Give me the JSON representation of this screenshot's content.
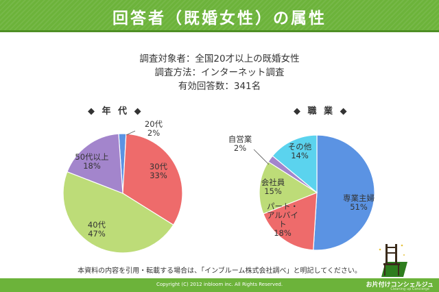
{
  "header": {
    "title": "回答者（既婚女性）の属性"
  },
  "survey": {
    "line1": "調査対象者：全国20才以上の既婚女性",
    "line2": "調査方法：インターネット調査",
    "line3": "有効回答数：341名"
  },
  "colors": {
    "brand_green": "#6cb33a",
    "blue": "#5b93e3",
    "red": "#ee6b6b",
    "green": "#bddc78",
    "purple": "#a385cc",
    "cyan": "#5bd3ee"
  },
  "chart_data": [
    {
      "type": "pie",
      "title": "◆ 年 代 ◆",
      "slices": [
        {
          "label": "20代",
          "value": 2,
          "value_label": "2%",
          "color": "#5b93e3"
        },
        {
          "label": "30代",
          "value": 33,
          "value_label": "33%",
          "color": "#ee6b6b"
        },
        {
          "label": "40代",
          "value": 47,
          "value_label": "47%",
          "color": "#bddc78"
        },
        {
          "label": "50代以上",
          "value": 18,
          "value_label": "18%",
          "color": "#a385cc"
        }
      ]
    },
    {
      "type": "pie",
      "title": "◆ 職 業 ◆",
      "slices": [
        {
          "label": "専業主婦",
          "value": 51,
          "value_label": "51%",
          "color": "#5b93e3"
        },
        {
          "label": "パート・アルバイト",
          "value": 18,
          "value_label": "18%",
          "color": "#ee6b6b"
        },
        {
          "label": "会社員",
          "value": 15,
          "value_label": "15%",
          "color": "#bddc78"
        },
        {
          "label": "自営業",
          "value": 2,
          "value_label": "2%",
          "color": "#a385cc"
        },
        {
          "label": "その他",
          "value": 14,
          "value_label": "14%",
          "color": "#5bd3ee"
        }
      ]
    }
  ],
  "note": "本資料の内容を引用・転載する場合は、「インブルーム株式会社調べ」と明記してください。",
  "footer": {
    "copyright": "Copyright (C) 2012 inbloom inc. All Rights Reserved.",
    "brand": "お片付けコンシェルジュ",
    "brand_sub": "Cleaning up Concierge"
  }
}
